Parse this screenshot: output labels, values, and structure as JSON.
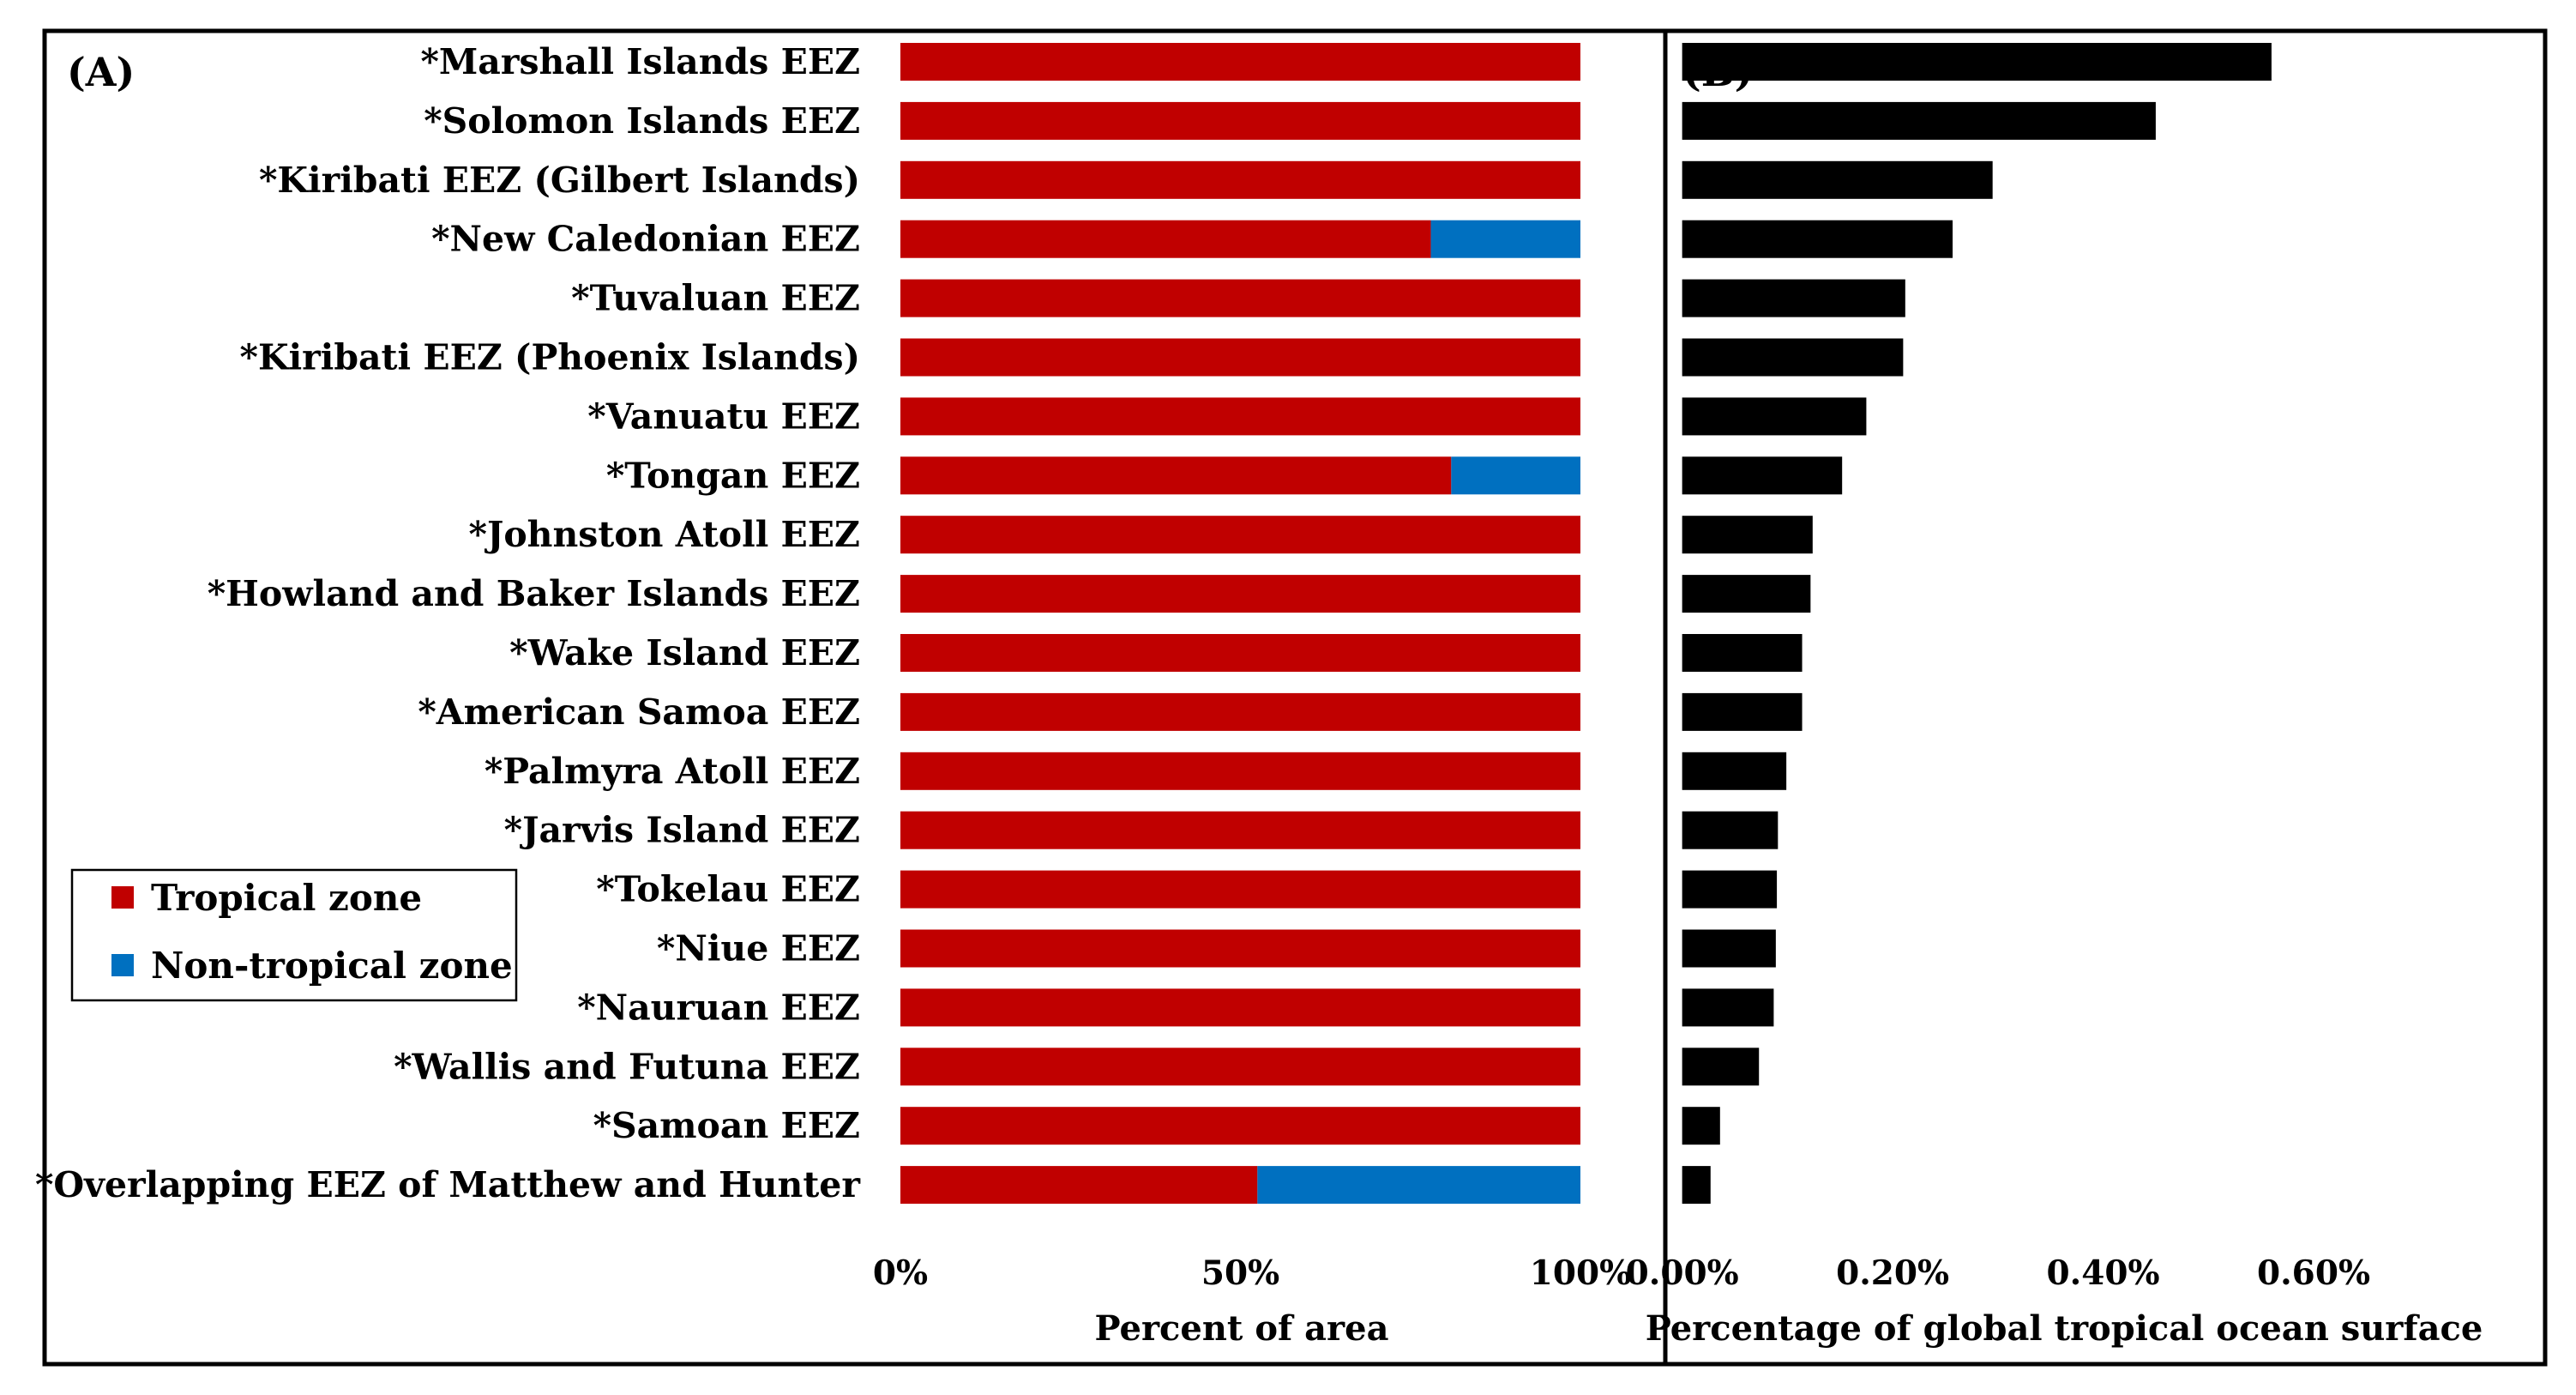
{
  "chart_data": [
    {
      "panel": "(A)",
      "type": "bar",
      "orientation": "horizontal",
      "stacked": true,
      "categories": [
        "*Marshall Islands EEZ",
        "*Solomon Islands EEZ",
        "*Kiribati EEZ (Gilbert Islands)",
        "*New Caledonian EEZ",
        "*Tuvaluan EEZ",
        "*Kiribati EEZ (Phoenix Islands)",
        "*Vanuatu EEZ",
        "*Tongan EEZ",
        "*Johnston Atoll EEZ",
        "*Howland and Baker Islands EEZ",
        "*Wake Island EEZ",
        "*American Samoa EEZ",
        "*Palmyra Atoll EEZ",
        "*Jarvis Island EEZ",
        "*Tokelau EEZ",
        "*Niue EEZ",
        "*Nauruan EEZ",
        "*Wallis and Futuna EEZ",
        "*Samoan EEZ",
        "*Overlapping EEZ of Matthew and Hunter"
      ],
      "series": [
        {
          "name": "Tropical zone",
          "color": "#c00000",
          "values": [
            100,
            100,
            100,
            78,
            100,
            100,
            100,
            81,
            100,
            100,
            100,
            100,
            100,
            100,
            100,
            100,
            100,
            100,
            100,
            52.5
          ]
        },
        {
          "name": "Non-tropical zone",
          "color": "#0070c0",
          "values": [
            0,
            0,
            0,
            22,
            0,
            0,
            0,
            19,
            0,
            0,
            0,
            0,
            0,
            0,
            0,
            0,
            0,
            0,
            0,
            47.5
          ]
        }
      ],
      "xlim": [
        0,
        100
      ],
      "xticks": [
        0,
        50,
        100
      ],
      "xtick_labels": [
        "0%",
        "50%",
        "100%"
      ],
      "xlabel": "Percent of area",
      "legend": {
        "position": "bottom-left",
        "entries": [
          "Tropical zone",
          "Non-tropical zone"
        ]
      }
    },
    {
      "panel": "(B)",
      "type": "bar",
      "orientation": "horizontal",
      "categories": [
        "*Marshall Islands EEZ",
        "*Solomon Islands EEZ",
        "*Kiribati EEZ (Gilbert Islands)",
        "*New Caledonian EEZ",
        "*Tuvaluan EEZ",
        "*Kiribati EEZ (Phoenix Islands)",
        "*Vanuatu EEZ",
        "*Tongan EEZ",
        "*Johnston Atoll EEZ",
        "*Howland and Baker Islands EEZ",
        "*Wake Island EEZ",
        "*American Samoa EEZ",
        "*Palmyra Atoll EEZ",
        "*Jarvis Island EEZ",
        "*Tokelau EEZ",
        "*Niue EEZ",
        "*Nauruan EEZ",
        "*Wallis and Futuna EEZ",
        "*Samoan EEZ",
        "*Overlapping EEZ of Matthew and Hunter"
      ],
      "color": "#000000",
      "values": [
        0.56,
        0.45,
        0.295,
        0.257,
        0.212,
        0.21,
        0.175,
        0.152,
        0.124,
        0.122,
        0.114,
        0.114,
        0.099,
        0.091,
        0.09,
        0.089,
        0.087,
        0.073,
        0.036,
        0.027
      ],
      "xlim": [
        -0.016,
        0.82
      ],
      "xticks": [
        0,
        0.2,
        0.4,
        0.6
      ],
      "xtick_labels": [
        "0.00%",
        "0.20%",
        "0.40%",
        "0.60%"
      ],
      "xlabel": "Percentage of global tropical ocean surface"
    }
  ]
}
